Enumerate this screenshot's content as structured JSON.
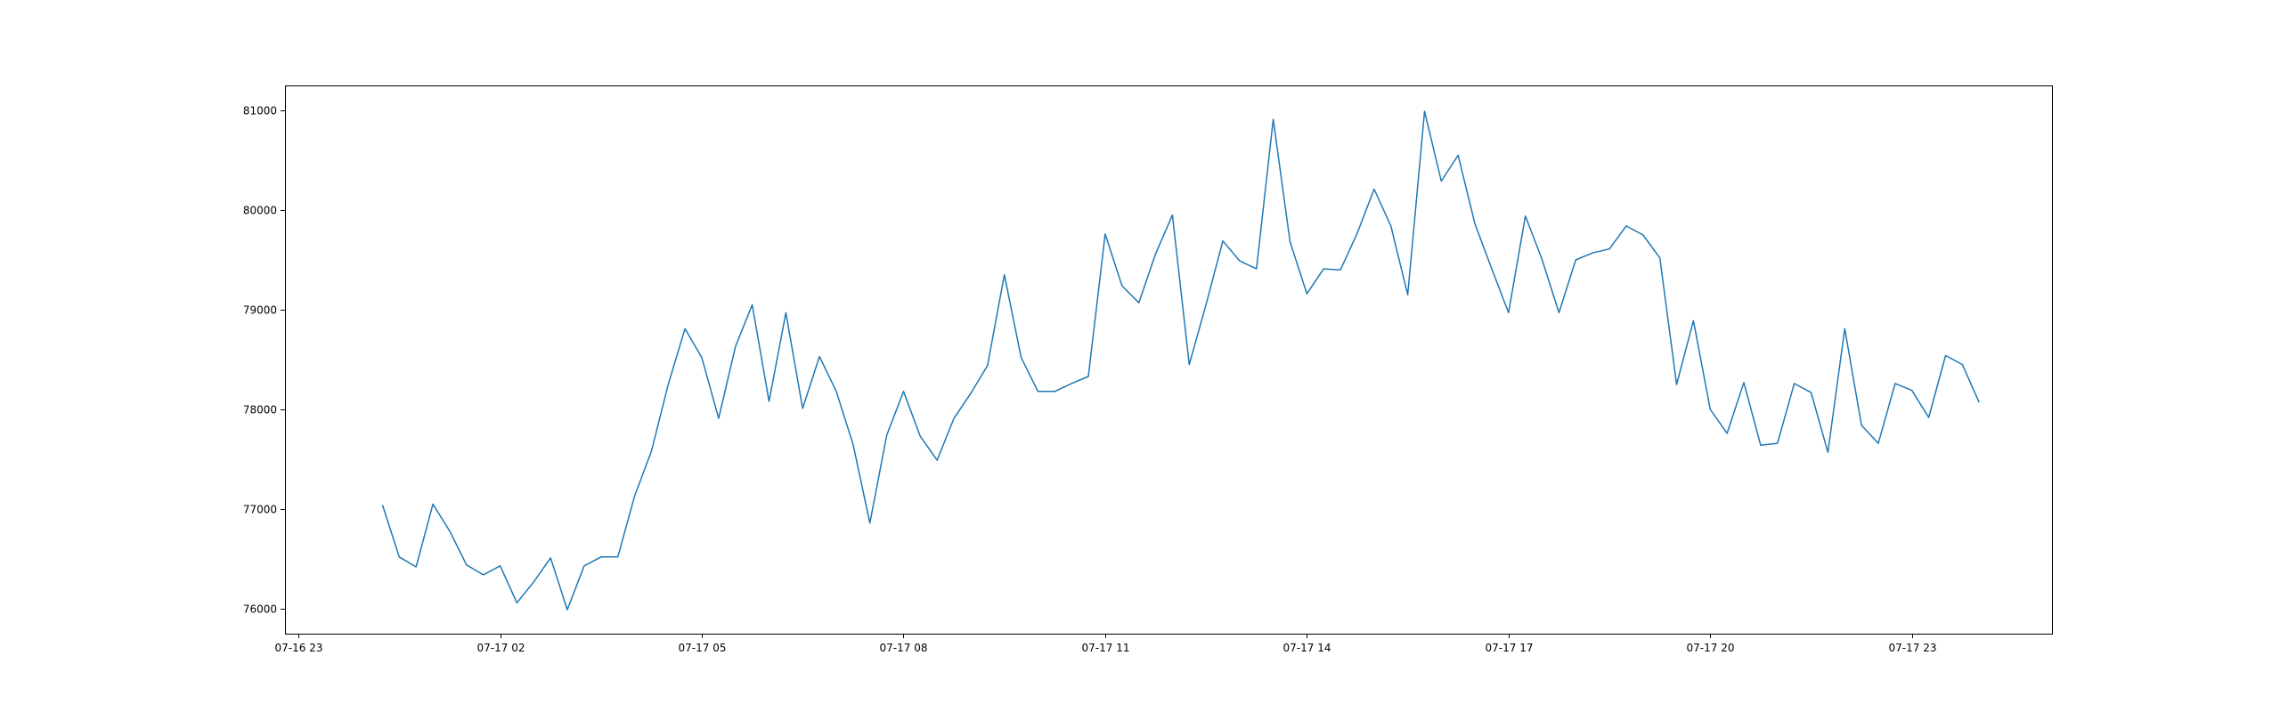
{
  "chart_data": {
    "type": "line",
    "title": "",
    "xlabel": "",
    "ylabel": "",
    "grid": false,
    "legend": "none",
    "line_color": "#1f77b4",
    "x_start": "2024-07-17T00:15",
    "x_step_minutes": 15,
    "xlim": [
      "2024-07-16T22:48",
      "2024-07-18T01:05"
    ],
    "ylim": [
      75750,
      81250
    ],
    "x_ticks": [
      {
        "x": "2024-07-16T23:00",
        "label": "07-16 23"
      },
      {
        "x": "2024-07-17T02:00",
        "label": "07-17 02"
      },
      {
        "x": "2024-07-17T05:00",
        "label": "07-17 05"
      },
      {
        "x": "2024-07-17T08:00",
        "label": "07-17 08"
      },
      {
        "x": "2024-07-17T11:00",
        "label": "07-17 11"
      },
      {
        "x": "2024-07-17T14:00",
        "label": "07-17 14"
      },
      {
        "x": "2024-07-17T17:00",
        "label": "07-17 17"
      },
      {
        "x": "2024-07-17T20:00",
        "label": "07-17 20"
      },
      {
        "x": "2024-07-17T23:00",
        "label": "07-17 23"
      }
    ],
    "y_ticks": [
      {
        "y": 76000,
        "label": "76000"
      },
      {
        "y": 77000,
        "label": "77000"
      },
      {
        "y": 78000,
        "label": "78000"
      },
      {
        "y": 79000,
        "label": "79000"
      },
      {
        "y": 80000,
        "label": "80000"
      },
      {
        "y": 81000,
        "label": "81000"
      }
    ],
    "series": [
      {
        "values": [
          77040,
          76520,
          76420,
          77050,
          76780,
          76440,
          76340,
          76430,
          76060,
          76270,
          76510,
          75990,
          76430,
          76520,
          76520,
          77130,
          77580,
          78250,
          78810,
          78520,
          77910,
          78630,
          79050,
          78080,
          78970,
          78010,
          78530,
          78180,
          77650,
          76860,
          77740,
          78180,
          77730,
          77490,
          77910,
          78160,
          78440,
          79350,
          78520,
          78180,
          78180,
          78260,
          78330,
          79760,
          79240,
          79070,
          79560,
          79950,
          78450,
          79050,
          79690,
          79490,
          79410,
          80910,
          79680,
          79160,
          79410,
          79400,
          79770,
          80210,
          79840,
          79150,
          80990,
          80290,
          80550,
          79860,
          79410,
          78970,
          79940,
          79500,
          78970,
          79500,
          79570,
          79610,
          79840,
          79750,
          79520,
          78250,
          78890,
          78000,
          77760,
          78270,
          77640,
          77660,
          78260,
          78170,
          77570,
          78810,
          77840,
          77660,
          78260,
          78190,
          77920,
          78540,
          78450,
          78070
        ]
      }
    ]
  }
}
